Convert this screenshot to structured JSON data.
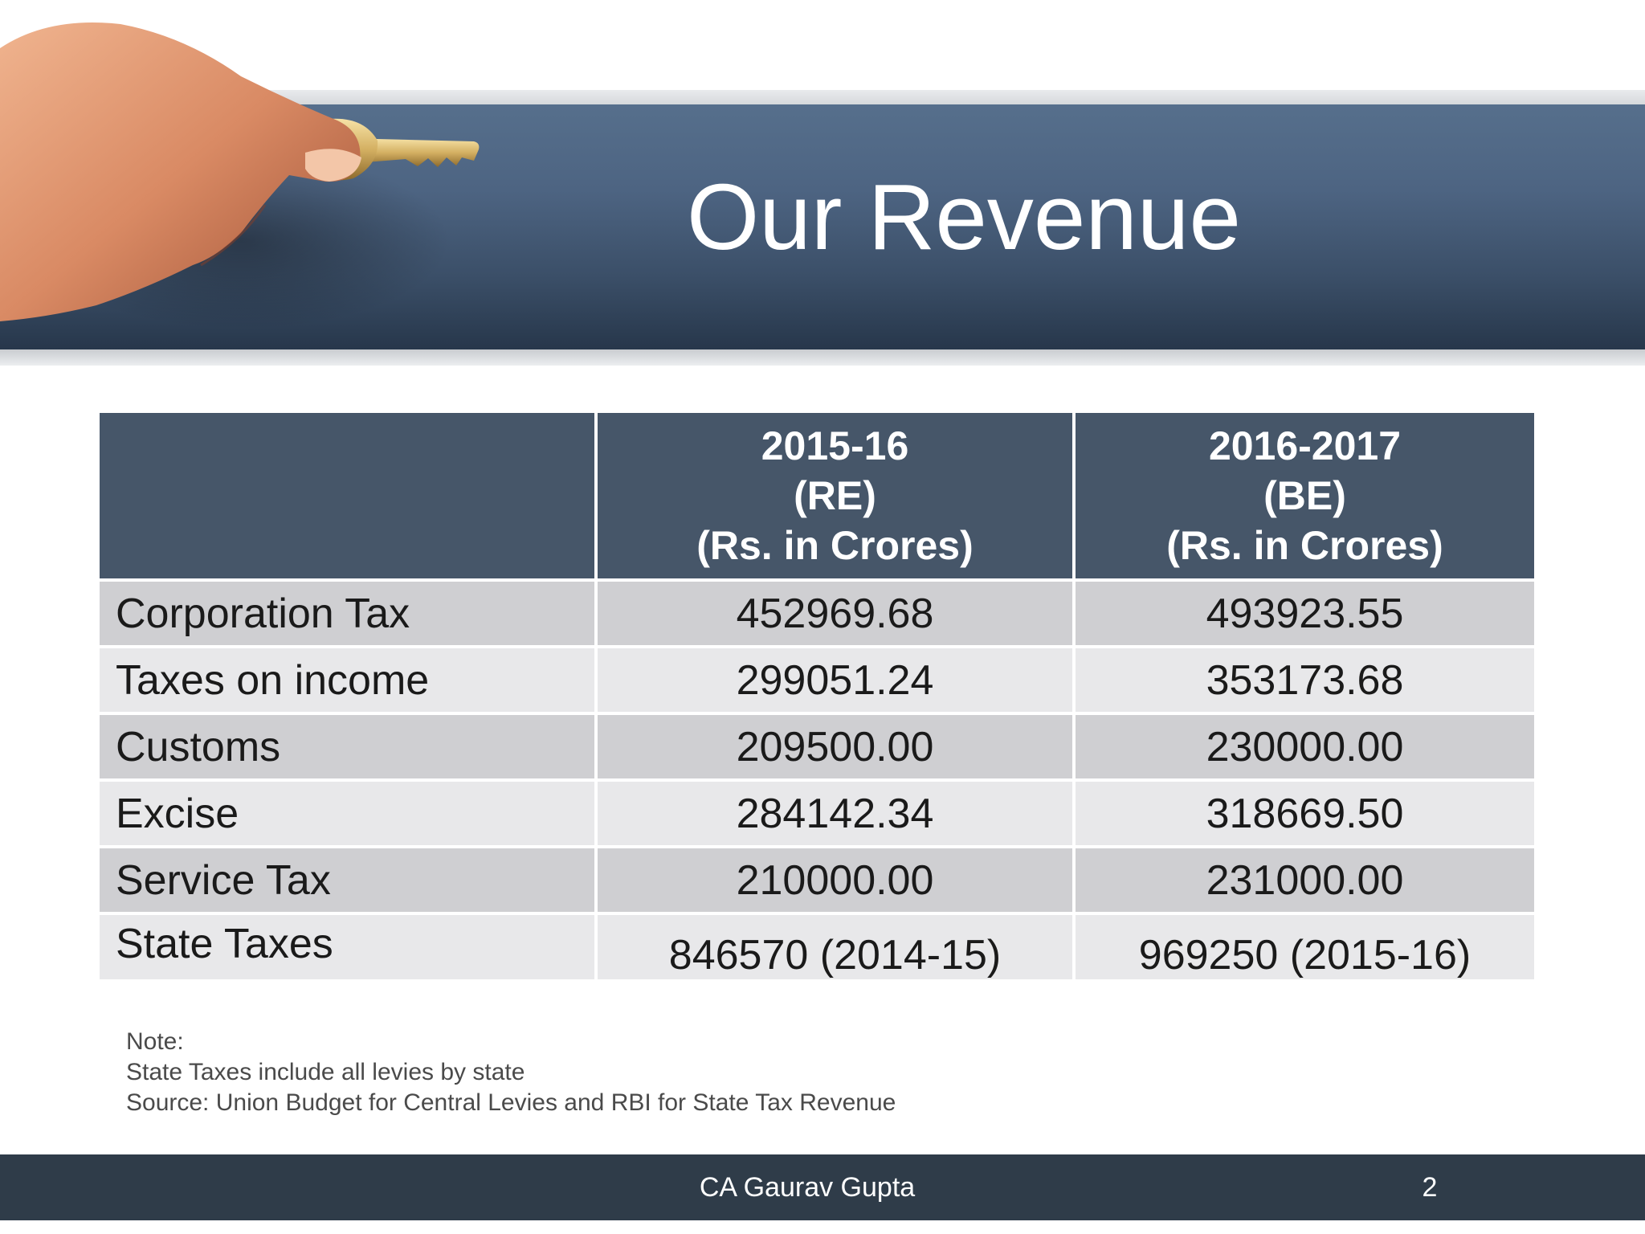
{
  "slide": {
    "title": "Our Revenue"
  },
  "table": {
    "headers": [
      {
        "lines": [
          "",
          "",
          ""
        ]
      },
      {
        "lines": [
          "2015-16",
          "(RE)",
          "(Rs. in Crores)"
        ]
      },
      {
        "lines": [
          "2016-2017",
          "(BE)",
          "(Rs. in Crores)"
        ]
      }
    ],
    "rows": [
      {
        "label": "Corporation Tax",
        "re_2015_16": "452969.68",
        "be_2016_17": "493923.55"
      },
      {
        "label": "Taxes on income",
        "re_2015_16": "299051.24",
        "be_2016_17": "353173.68"
      },
      {
        "label": "Customs",
        "re_2015_16": "209500.00",
        "be_2016_17": "230000.00"
      },
      {
        "label": "Excise",
        "re_2015_16": "284142.34",
        "be_2016_17": "318669.50"
      },
      {
        "label": "Service Tax",
        "re_2015_16": "210000.00",
        "be_2016_17": "231000.00"
      },
      {
        "label": "State Taxes",
        "re_2015_16": "846570 (2014-15)",
        "be_2016_17": "969250 (2015-16)"
      }
    ]
  },
  "notes": {
    "heading": "Note:",
    "line1": "State Taxes include all levies by state",
    "line2": "Source: Union Budget for Central Levies and RBI for State Tax Revenue"
  },
  "footer": {
    "author": "CA Gaurav Gupta",
    "page_number": "2"
  },
  "colors": {
    "banner": "#4d6482",
    "table_header": "#465669",
    "row_dark": "#cfcfd2",
    "row_light": "#e8e8ea",
    "footer": "#2f3c49"
  }
}
